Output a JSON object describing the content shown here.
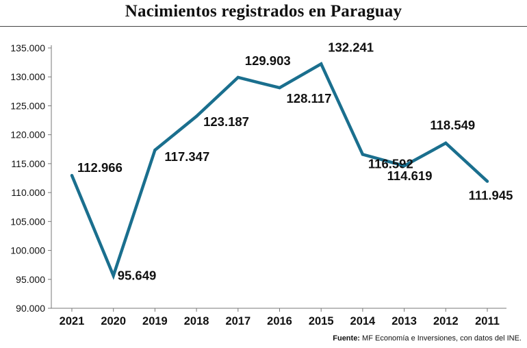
{
  "chart_data": {
    "type": "line",
    "title": "Nacimientos registrados en Paraguay",
    "categories": [
      "2021",
      "2020",
      "2019",
      "2018",
      "2017",
      "2016",
      "2015",
      "2014",
      "2013",
      "2012",
      "2011"
    ],
    "values": [
      112966,
      95649,
      117347,
      123187,
      129903,
      128117,
      132241,
      116592,
      114619,
      118549,
      111945
    ],
    "value_labels": [
      "112.966",
      "95.649",
      "117.347",
      "123.187",
      "129.903",
      "128.117",
      "132.241",
      "116.592",
      "114.619",
      "118.549",
      "111.945"
    ],
    "yticks": [
      90000,
      95000,
      100000,
      105000,
      110000,
      115000,
      120000,
      125000,
      130000,
      135000
    ],
    "ytick_labels": [
      "90.000",
      "95.000",
      "100.000",
      "105.000",
      "110.000",
      "115.000",
      "120.000",
      "125.000",
      "130.000",
      "135.000"
    ],
    "ylim": [
      90000,
      135000
    ],
    "grid": false,
    "line_color": "#1a6f8e"
  },
  "source": {
    "label": "Fuente:",
    "text": "MF Economía e Inversiones, con datos del INE."
  }
}
